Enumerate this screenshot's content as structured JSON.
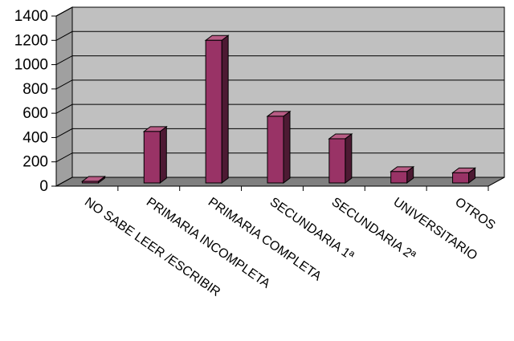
{
  "chart_data": {
    "type": "bar",
    "style": "3d-column",
    "categories": [
      "NO SABE LEER /ESCRIBIR",
      "PRIMARIA  INCOMPLETA",
      "PRIMARIA  COMPLETA",
      "SECUNDARIA 1ª",
      "SECUNDARIA 2ª",
      "UNIVERSITARIO",
      "OTROS"
    ],
    "values": [
      15,
      450,
      1200,
      575,
      390,
      120,
      110
    ],
    "ylim": [
      0,
      1400
    ],
    "yticks": [
      0,
      200,
      400,
      600,
      800,
      1000,
      1200,
      1400
    ],
    "title": "",
    "xlabel": "",
    "ylabel": "",
    "grid": true,
    "legend": "none",
    "colors": {
      "bar_front": "#993366",
      "bar_side": "#4d1a33",
      "bar_top": "#b85c85",
      "back_wall": "#c0c0c0",
      "floor": "#808080",
      "left_wall": "#a0a0a0",
      "gridline": "#000000"
    }
  }
}
